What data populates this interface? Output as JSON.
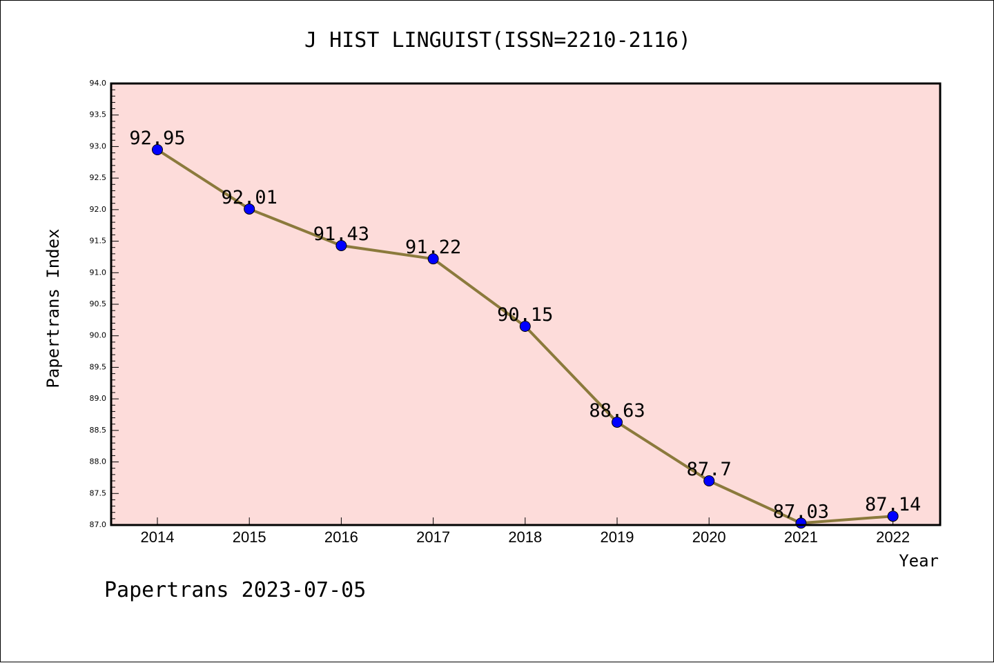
{
  "chart_data": {
    "type": "line",
    "title": "J HIST LINGUIST(ISSN=2210-2116)",
    "xlabel": "Year",
    "ylabel": "Papertrans Index",
    "categories": [
      "2014",
      "2015",
      "2016",
      "2017",
      "2018",
      "2019",
      "2020",
      "2021",
      "2022"
    ],
    "values": [
      92.95,
      92.01,
      91.43,
      91.22,
      90.15,
      88.63,
      87.7,
      87.03,
      87.14
    ],
    "data_labels": [
      "92.95",
      "92.01",
      "91.43",
      "91.22",
      "90.15",
      "88.63",
      "87.7",
      "87.03",
      "87.14"
    ],
    "ylim": [
      87.0,
      94.0
    ],
    "y_ticks": [
      "87.0",
      "87.5",
      "88.0",
      "88.5",
      "89.0",
      "89.5",
      "90.0",
      "90.5",
      "91.0",
      "91.5",
      "92.0",
      "92.5",
      "93.0",
      "93.5",
      "94.0"
    ],
    "grid": false,
    "legend": "none",
    "colors": {
      "plot_background": "#fddcda",
      "line": "#8b7a3c",
      "marker": "#0000ff",
      "text": "#000000"
    }
  },
  "footer": {
    "watermark": "Papertrans 2023-07-05"
  }
}
